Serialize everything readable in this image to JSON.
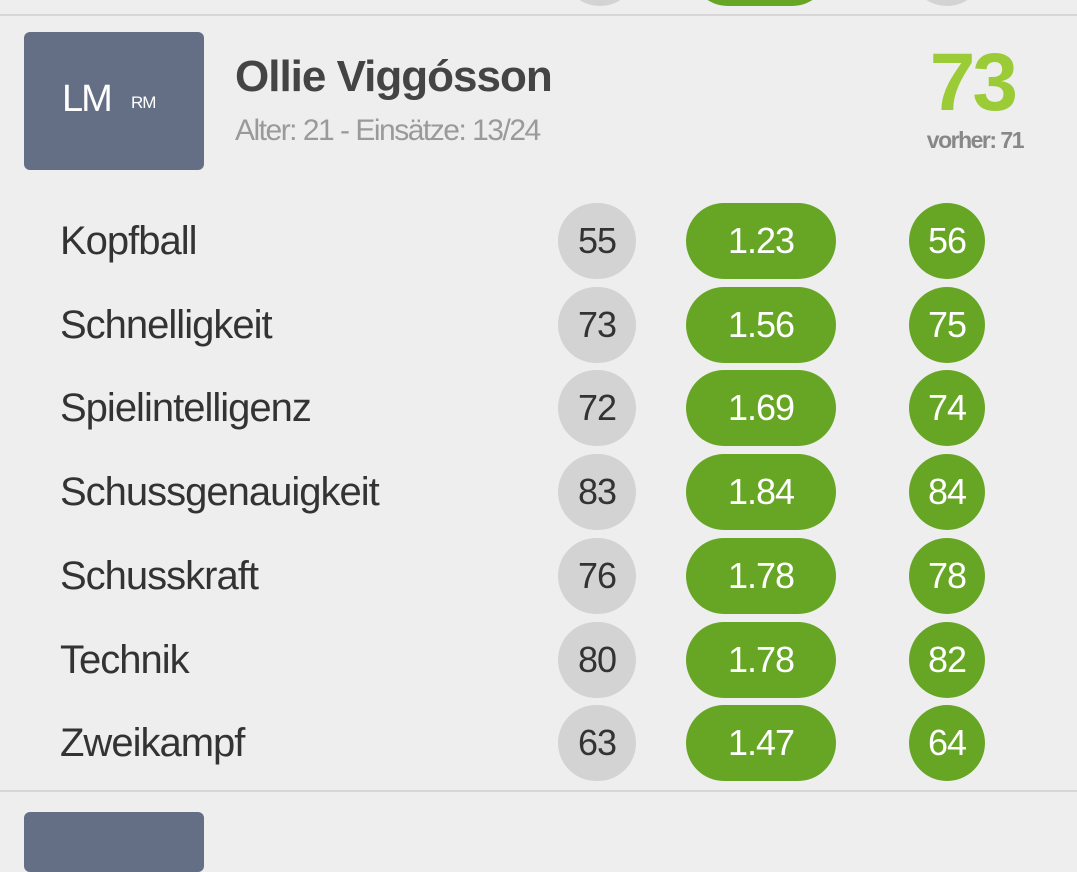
{
  "player": {
    "position": "LM",
    "secondary_position": "RM",
    "name": "Ollie Viggósson",
    "subtitle": "Alter: 21 - Einsätze: 13/24",
    "rating": "73",
    "previous": "vorher: 71",
    "attributes": [
      {
        "name": "Kopfball",
        "old": "55",
        "factor": "1.23",
        "new": "56"
      },
      {
        "name": "Schnelligkeit",
        "old": "73",
        "factor": "1.56",
        "new": "75"
      },
      {
        "name": "Spielintelligenz",
        "old": "72",
        "factor": "1.69",
        "new": "74"
      },
      {
        "name": "Schussgenauigkeit",
        "old": "83",
        "factor": "1.84",
        "new": "84"
      },
      {
        "name": "Schusskraft",
        "old": "76",
        "factor": "1.78",
        "new": "78"
      },
      {
        "name": "Technik",
        "old": "80",
        "factor": "1.78",
        "new": "82"
      },
      {
        "name": "Zweikampf",
        "old": "63",
        "factor": "1.47",
        "new": "64"
      }
    ]
  }
}
